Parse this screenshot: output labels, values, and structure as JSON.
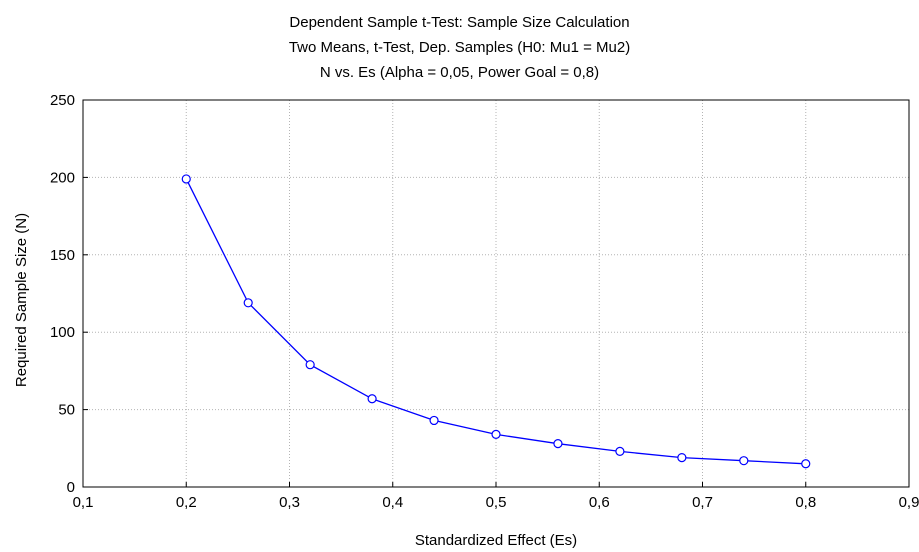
{
  "chart_data": {
    "type": "line",
    "title": [
      "Dependent Sample t-Test: Sample Size Calculation",
      "Two Means, t-Test, Dep. Samples (H0:  Mu1 = Mu2)",
      "N vs. Es (Alpha = 0,05, Power Goal = 0,8)"
    ],
    "xlabel": "Standardized Effect (Es)",
    "ylabel": "Required Sample Size (N)",
    "xlim": [
      0.1,
      0.9
    ],
    "ylim": [
      0,
      250
    ],
    "xticks": [
      0.1,
      0.2,
      0.3,
      0.4,
      0.5,
      0.6,
      0.7,
      0.8,
      0.9
    ],
    "xtick_labels": [
      "0,1",
      "0,2",
      "0,3",
      "0,4",
      "0,5",
      "0,6",
      "0,7",
      "0,8",
      "0,9"
    ],
    "yticks": [
      0,
      50,
      100,
      150,
      200,
      250
    ],
    "ytick_labels": [
      "0",
      "50",
      "100",
      "150",
      "200",
      "250"
    ],
    "grid": true,
    "x": [
      0.2,
      0.26,
      0.32,
      0.38,
      0.44,
      0.5,
      0.56,
      0.62,
      0.68,
      0.74,
      0.8
    ],
    "series": [
      {
        "values": [
          199,
          119,
          79,
          57,
          43,
          34,
          28,
          23,
          19,
          17,
          15
        ],
        "color": "#0000FF",
        "marker": "circle"
      }
    ]
  }
}
